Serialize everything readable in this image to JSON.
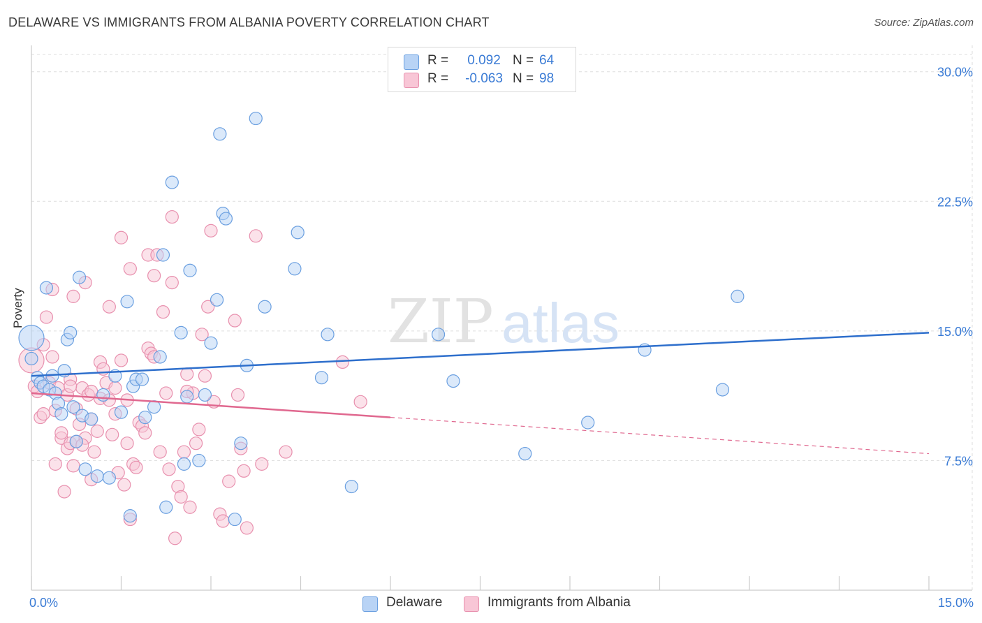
{
  "title": "DELAWARE VS IMMIGRANTS FROM ALBANIA POVERTY CORRELATION CHART",
  "source": "Source: ZipAtlas.com",
  "watermark": {
    "zip": "ZIP",
    "atlas": "atlas"
  },
  "legend_top": {
    "rows": [
      {
        "r_label": "R =",
        "r_value": "0.092",
        "n_label": "N =",
        "n_value": "64"
      },
      {
        "r_label": "R =",
        "r_value": "-0.063",
        "n_label": "N =",
        "n_value": "98"
      }
    ]
  },
  "colors": {
    "delaware_fill": "#b8d3f5",
    "delaware_stroke": "#6a9fe0",
    "delaware_line": "#2e6fcc",
    "albania_fill": "#f8c6d6",
    "albania_stroke": "#e890ae",
    "albania_line": "#e0688f",
    "tick_text": "#3a7bd5",
    "grid": "#dddddd"
  },
  "chart_data": {
    "type": "scatter",
    "title": "DELAWARE VS IMMIGRANTS FROM ALBANIA POVERTY CORRELATION CHART",
    "xlabel": "",
    "ylabel": "Poverty",
    "xlim": [
      0,
      15
    ],
    "ylim": [
      0,
      31
    ],
    "x_tick_labels": [
      "0.0%",
      "15.0%"
    ],
    "y_ticks": [
      7.5,
      15.0,
      22.5,
      30.0
    ],
    "y_tick_labels": [
      "7.5%",
      "15.0%",
      "22.5%",
      "30.0%"
    ],
    "grid": true,
    "legend_position": "bottom",
    "series": [
      {
        "name": "Delaware",
        "r": 0.092,
        "n": 64,
        "trend": {
          "x": [
            0,
            15
          ],
          "y": [
            12.4,
            14.9
          ],
          "dashed_from": null
        },
        "points": [
          [
            0.0,
            14.6
          ],
          [
            0.1,
            12.3
          ],
          [
            0.15,
            12.0
          ],
          [
            0.2,
            11.8
          ],
          [
            0.25,
            17.5
          ],
          [
            0.3,
            11.6
          ],
          [
            0.35,
            12.4
          ],
          [
            0.4,
            11.4
          ],
          [
            0.45,
            10.8
          ],
          [
            0.5,
            10.2
          ],
          [
            0.55,
            12.7
          ],
          [
            0.6,
            14.5
          ],
          [
            0.65,
            14.9
          ],
          [
            0.7,
            10.6
          ],
          [
            0.75,
            8.6
          ],
          [
            0.8,
            18.1
          ],
          [
            0.85,
            10.1
          ],
          [
            0.9,
            7.0
          ],
          [
            1.0,
            9.9
          ],
          [
            1.1,
            6.6
          ],
          [
            1.2,
            11.3
          ],
          [
            1.3,
            6.5
          ],
          [
            1.4,
            12.4
          ],
          [
            1.5,
            10.3
          ],
          [
            1.6,
            16.7
          ],
          [
            1.65,
            4.3
          ],
          [
            1.7,
            11.8
          ],
          [
            1.75,
            12.2
          ],
          [
            1.85,
            12.2
          ],
          [
            1.9,
            10.0
          ],
          [
            2.05,
            10.6
          ],
          [
            2.15,
            13.5
          ],
          [
            2.2,
            19.4
          ],
          [
            2.25,
            4.8
          ],
          [
            2.35,
            23.6
          ],
          [
            2.5,
            14.9
          ],
          [
            2.55,
            7.3
          ],
          [
            2.6,
            11.2
          ],
          [
            2.65,
            18.5
          ],
          [
            2.8,
            7.5
          ],
          [
            2.9,
            11.3
          ],
          [
            3.0,
            14.3
          ],
          [
            3.1,
            16.8
          ],
          [
            3.15,
            26.4
          ],
          [
            3.2,
            21.8
          ],
          [
            3.25,
            21.5
          ],
          [
            3.4,
            4.1
          ],
          [
            3.5,
            8.5
          ],
          [
            3.6,
            13.0
          ],
          [
            3.75,
            27.3
          ],
          [
            3.9,
            16.4
          ],
          [
            4.4,
            18.6
          ],
          [
            4.45,
            20.7
          ],
          [
            4.85,
            12.3
          ],
          [
            4.95,
            14.8
          ],
          [
            5.35,
            6.0
          ],
          [
            6.8,
            14.8
          ],
          [
            7.05,
            12.1
          ],
          [
            8.25,
            7.9
          ],
          [
            9.3,
            9.7
          ],
          [
            10.25,
            13.9
          ],
          [
            11.55,
            11.6
          ],
          [
            11.8,
            17.0
          ],
          [
            0.0,
            13.4
          ]
        ],
        "big_points": [
          [
            0.0,
            14.6
          ]
        ]
      },
      {
        "name": "Immigrants from Albania",
        "r": -0.063,
        "n": 98,
        "trend": {
          "x": [
            0,
            15
          ],
          "y": [
            11.4,
            7.9
          ],
          "dashed_from": 6.0
        },
        "points": [
          [
            0.0,
            13.3
          ],
          [
            0.05,
            11.8
          ],
          [
            0.1,
            11.5
          ],
          [
            0.15,
            10.0
          ],
          [
            0.2,
            10.2
          ],
          [
            0.2,
            14.2
          ],
          [
            0.25,
            15.8
          ],
          [
            0.3,
            12.0
          ],
          [
            0.35,
            13.5
          ],
          [
            0.35,
            17.4
          ],
          [
            0.4,
            7.3
          ],
          [
            0.45,
            11.7
          ],
          [
            0.5,
            8.8
          ],
          [
            0.5,
            9.1
          ],
          [
            0.55,
            5.7
          ],
          [
            0.6,
            8.2
          ],
          [
            0.6,
            11.3
          ],
          [
            0.65,
            8.5
          ],
          [
            0.65,
            12.2
          ],
          [
            0.7,
            17.0
          ],
          [
            0.7,
            7.2
          ],
          [
            0.75,
            8.6
          ],
          [
            0.75,
            10.5
          ],
          [
            0.8,
            9.6
          ],
          [
            0.85,
            11.7
          ],
          [
            0.9,
            17.8
          ],
          [
            0.9,
            8.8
          ],
          [
            0.95,
            11.3
          ],
          [
            1.0,
            6.4
          ],
          [
            1.0,
            9.9
          ],
          [
            1.05,
            8.0
          ],
          [
            1.1,
            9.2
          ],
          [
            1.15,
            11.1
          ],
          [
            1.15,
            13.2
          ],
          [
            1.2,
            12.8
          ],
          [
            1.25,
            12.0
          ],
          [
            1.3,
            16.4
          ],
          [
            1.35,
            9.0
          ],
          [
            1.4,
            11.7
          ],
          [
            1.4,
            10.2
          ],
          [
            1.45,
            6.8
          ],
          [
            1.5,
            13.3
          ],
          [
            1.5,
            20.4
          ],
          [
            1.55,
            6.1
          ],
          [
            1.6,
            8.5
          ],
          [
            1.6,
            11.0
          ],
          [
            1.65,
            18.6
          ],
          [
            1.65,
            4.1
          ],
          [
            1.7,
            7.3
          ],
          [
            1.75,
            7.1
          ],
          [
            1.8,
            9.7
          ],
          [
            1.85,
            9.5
          ],
          [
            1.9,
            9.1
          ],
          [
            1.95,
            14.0
          ],
          [
            1.95,
            19.4
          ],
          [
            2.0,
            13.7
          ],
          [
            2.05,
            13.5
          ],
          [
            2.05,
            18.2
          ],
          [
            2.1,
            19.4
          ],
          [
            2.15,
            8.0
          ],
          [
            2.2,
            16.1
          ],
          [
            2.25,
            11.4
          ],
          [
            2.3,
            7.0
          ],
          [
            2.35,
            21.6
          ],
          [
            2.35,
            17.8
          ],
          [
            2.4,
            3.0
          ],
          [
            2.45,
            6.0
          ],
          [
            2.5,
            5.4
          ],
          [
            2.55,
            8.0
          ],
          [
            2.6,
            12.5
          ],
          [
            2.65,
            4.8
          ],
          [
            2.7,
            11.4
          ],
          [
            2.75,
            8.5
          ],
          [
            2.8,
            9.3
          ],
          [
            2.85,
            14.8
          ],
          [
            2.9,
            12.4
          ],
          [
            2.95,
            16.4
          ],
          [
            3.0,
            20.8
          ],
          [
            3.05,
            10.9
          ],
          [
            3.15,
            4.4
          ],
          [
            3.2,
            4.0
          ],
          [
            3.3,
            6.3
          ],
          [
            3.4,
            15.6
          ],
          [
            3.45,
            11.3
          ],
          [
            3.5,
            8.2
          ],
          [
            3.55,
            6.9
          ],
          [
            3.6,
            3.6
          ],
          [
            3.75,
            20.5
          ],
          [
            3.85,
            7.3
          ],
          [
            4.25,
            8.0
          ],
          [
            5.2,
            13.2
          ],
          [
            5.5,
            10.9
          ],
          [
            1.3,
            11.0
          ],
          [
            0.85,
            8.4
          ],
          [
            2.6,
            11.5
          ],
          [
            1.0,
            11.5
          ],
          [
            0.4,
            10.4
          ],
          [
            0.65,
            11.8
          ]
        ],
        "big_points": [
          [
            0.0,
            13.3
          ]
        ]
      }
    ]
  },
  "bottom_legend": {
    "items": [
      "Delaware",
      "Immigrants from Albania"
    ]
  }
}
